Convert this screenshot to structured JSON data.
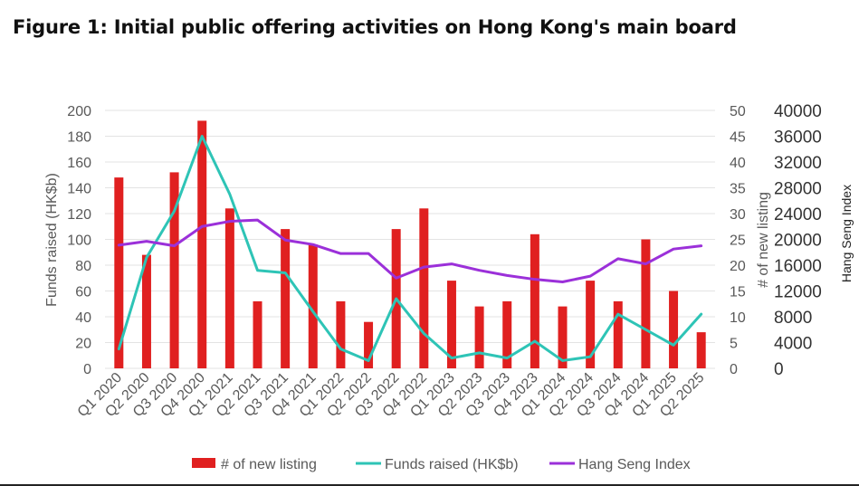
{
  "title": "Figure 1: Initial public offering activities on Hong Kong's main board",
  "chart_data": {
    "type": "bar",
    "categories": [
      "Q1 2020",
      "Q2 2020",
      "Q3 2020",
      "Q4 2020",
      "Q1 2021",
      "Q2 2021",
      "Q3 2021",
      "Q4 2021",
      "Q1 2022",
      "Q2 2022",
      "Q3 2022",
      "Q4 2022",
      "Q1 2023",
      "Q2 2023",
      "Q3 2023",
      "Q4 2023",
      "Q1 2024",
      "Q2 2024",
      "Q3 2024",
      "Q4 2024",
      "Q1 2025",
      "Q2 2025"
    ],
    "series": [
      {
        "name": "# of new listing",
        "type": "bar",
        "axis": "right1",
        "color": "#e02020",
        "values": [
          37,
          22,
          38,
          48,
          31,
          13,
          27,
          24,
          13,
          9,
          27,
          31,
          17,
          12,
          13,
          26,
          12,
          17,
          13,
          25,
          15,
          7
        ]
      },
      {
        "name": "Funds raised (HK$b)",
        "type": "line",
        "axis": "left",
        "color": "#2ec4b6",
        "values": [
          15,
          86,
          122,
          180,
          135,
          76,
          74,
          44,
          15,
          6,
          54,
          27,
          8,
          12,
          8,
          21,
          6,
          9,
          42,
          30,
          18,
          42
        ]
      },
      {
        "name": "Hang Seng Index",
        "type": "line",
        "axis": "right2",
        "color": "#9b30d9",
        "values": [
          19100,
          19700,
          19000,
          22000,
          22800,
          23000,
          19900,
          19200,
          17800,
          17800,
          14000,
          15700,
          16200,
          15200,
          14400,
          13800,
          13400,
          14300,
          17000,
          16200,
          18500,
          19000
        ]
      }
    ],
    "left_axis": {
      "label": "Funds raised (HK$b)",
      "ylim": [
        0,
        200
      ],
      "ticks": [
        "200",
        "180",
        "160",
        "140",
        "120",
        "100",
        "80",
        "60",
        "40",
        "20",
        "0"
      ]
    },
    "right_axis_1": {
      "label": "# of new listing",
      "ylim": [
        0,
        50
      ],
      "ticks": [
        "50",
        "45",
        "40",
        "35",
        "30",
        "25",
        "20",
        "15",
        "10",
        "5",
        "0"
      ]
    },
    "right_axis_2": {
      "label": "Hang Seng Index",
      "ylim": [
        0,
        40000
      ],
      "ticks": [
        "40000",
        "36000",
        "32000",
        "28000",
        "24000",
        "20000",
        "16000",
        "12000",
        "8000",
        "4000",
        "0"
      ]
    },
    "legend": [
      "# of new listing",
      "Funds raised (HK$b)",
      "Hang Seng Index"
    ],
    "legend_position": "bottom",
    "grid": true
  }
}
